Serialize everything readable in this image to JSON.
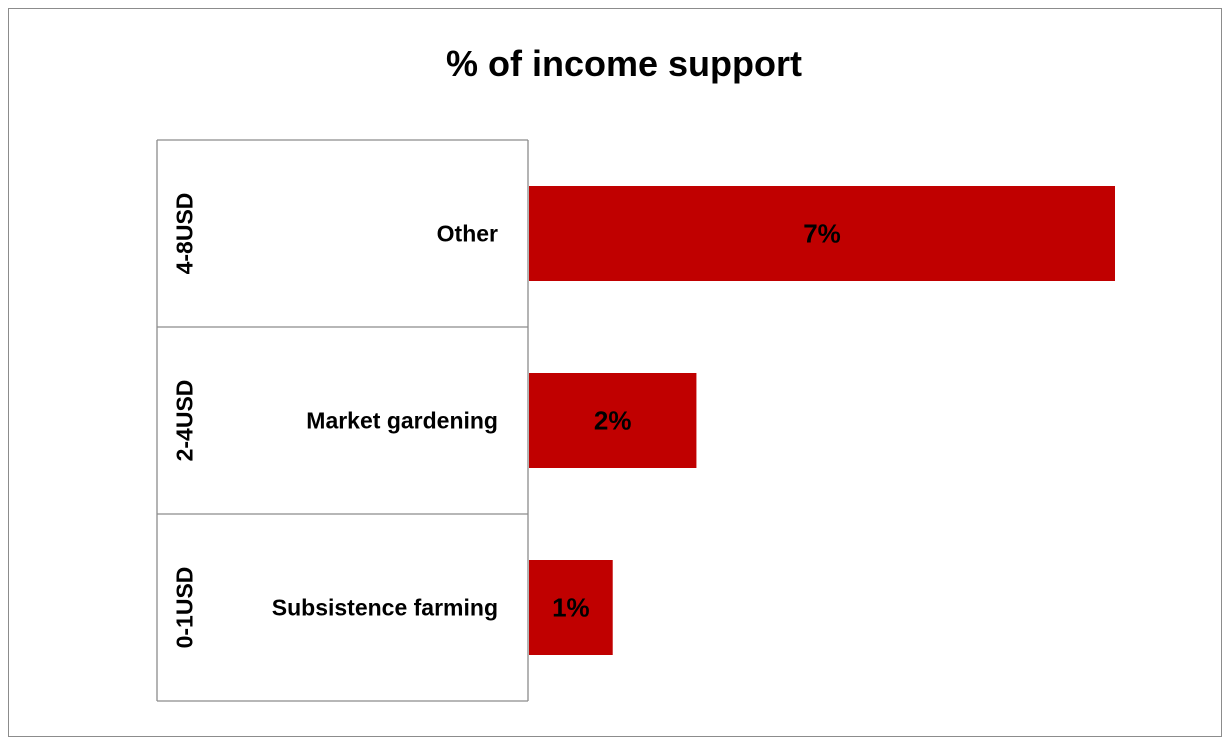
{
  "chart_data": {
    "type": "bar",
    "orientation": "horizontal",
    "title": "% of income support",
    "categories": [
      "Other",
      "Market gardening",
      "Subsistence farming"
    ],
    "groups": [
      "4-8USD",
      "2-4USD",
      "0-1USD"
    ],
    "values": [
      7,
      2,
      1
    ],
    "data_labels": [
      "7%",
      "2%",
      "1%"
    ],
    "value_unit": "%",
    "xlim": [
      0,
      8
    ],
    "grid": false,
    "legend": "none",
    "bar_color": "#c00000"
  }
}
